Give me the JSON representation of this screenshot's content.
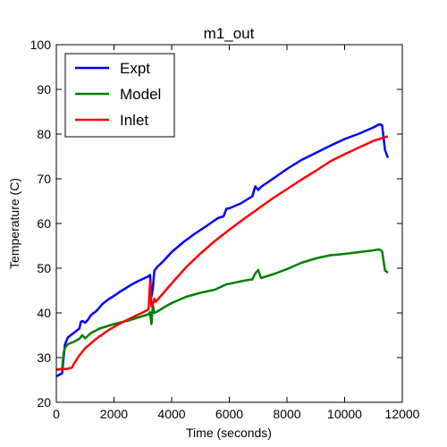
{
  "chart_data": {
    "type": "line",
    "title": "m1_out",
    "xlabel": "Time (seconds)",
    "ylabel": "Temperature (C)",
    "xlim": [
      0,
      12000
    ],
    "ylim": [
      20,
      100
    ],
    "x_ticks": [
      0,
      2000,
      4000,
      6000,
      8000,
      10000,
      12000
    ],
    "y_ticks": [
      20,
      30,
      40,
      50,
      60,
      70,
      80,
      90,
      100
    ],
    "grid": false,
    "legend_position": "upper-left",
    "series": [
      {
        "name": "Expt",
        "color": "#0000ff",
        "x": [
          0,
          200,
          260,
          300,
          400,
          600,
          800,
          850,
          900,
          1000,
          1100,
          1200,
          1400,
          1600,
          1800,
          2000,
          2200,
          2400,
          2600,
          2800,
          3000,
          3200,
          3250,
          3300,
          3350,
          3400,
          3500,
          3700,
          4000,
          4400,
          4800,
          5200,
          5600,
          5800,
          5900,
          6000,
          6400,
          6800,
          6900,
          7000,
          7100,
          7400,
          8000,
          8500,
          9000,
          9500,
          10000,
          10500,
          11000,
          11200,
          11300,
          11400,
          11500
        ],
        "y": [
          25.8,
          26.5,
          30.5,
          33,
          34.5,
          35.5,
          36.5,
          38,
          38.2,
          37.8,
          38.5,
          39.5,
          40.5,
          42,
          43,
          43.8,
          44.7,
          45.5,
          46.3,
          47,
          47.6,
          48.2,
          48.5,
          43.6,
          45.5,
          49.4,
          50.3,
          51.5,
          53.6,
          55.8,
          57.7,
          59.4,
          61.2,
          61.6,
          63.3,
          63.4,
          64.5,
          66.1,
          68.3,
          67.5,
          68.2,
          69.5,
          72.2,
          74.2,
          75.8,
          77.4,
          78.9,
          80.1,
          81.5,
          82.2,
          82,
          76.5,
          74.7
        ]
      },
      {
        "name": "Model",
        "color": "#008000",
        "x": [
          0,
          200,
          250,
          300,
          400,
          600,
          800,
          900,
          1000,
          1200,
          1500,
          2000,
          2500,
          3000,
          3200,
          3250,
          3300,
          3350,
          3400,
          3500,
          3800,
          4000,
          4500,
          5000,
          5500,
          5900,
          6000,
          6500,
          6800,
          6900,
          7000,
          7100,
          7500,
          8000,
          8500,
          9000,
          9500,
          10000,
          10500,
          11000,
          11200,
          11300,
          11400,
          11500
        ],
        "y": [
          27.3,
          27.5,
          31,
          32.2,
          33,
          33.5,
          34.2,
          35,
          34.3,
          35.5,
          36.5,
          37.5,
          38.3,
          39.3,
          39.7,
          40.2,
          37.5,
          41.8,
          40,
          40.3,
          41.5,
          42.2,
          43.6,
          44.5,
          45.2,
          46.4,
          46.5,
          47.2,
          47.5,
          48.8,
          49.6,
          47.8,
          48.6,
          49.8,
          51.2,
          52.2,
          52.9,
          53.2,
          53.6,
          54,
          54.2,
          53.8,
          49.5,
          49
        ]
      },
      {
        "name": "Inlet",
        "color": "#ff0000",
        "x": [
          0,
          400,
          550,
          600,
          800,
          1000,
          1400,
          1800,
          2200,
          2600,
          3000,
          3200,
          3250,
          3300,
          3350,
          3400,
          3450,
          3600,
          4000,
          4500,
          5000,
          5500,
          6000,
          6500,
          7000,
          7500,
          8000,
          8500,
          9000,
          9500,
          10000,
          10500,
          11000,
          11500
        ],
        "y": [
          27.3,
          27.5,
          27.8,
          28.5,
          30.5,
          32.1,
          34.3,
          36.1,
          37.6,
          38.9,
          40.1,
          40.8,
          46.9,
          41.5,
          42,
          43.2,
          42.5,
          43.6,
          46.6,
          50.2,
          53.3,
          56.1,
          58.6,
          61,
          63.3,
          65.6,
          67.7,
          69.8,
          71.8,
          73.9,
          75.5,
          77,
          78.5,
          79.5
        ]
      }
    ]
  }
}
